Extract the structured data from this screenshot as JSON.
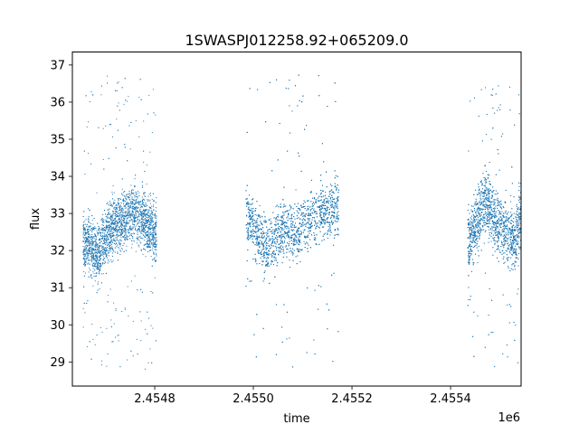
{
  "chart_data": {
    "type": "scatter",
    "title": "1SWASPJ012258.92+065209.0",
    "xlabel": "time",
    "ylabel": "flux",
    "x_offset_label": "1e6",
    "xlim": [
      2454633,
      2455543
    ],
    "ylim": [
      28.35,
      37.35
    ],
    "x_ticks": [
      {
        "value": 2454800,
        "label": "2.4548"
      },
      {
        "value": 2455000,
        "label": "2.4550"
      },
      {
        "value": 2455200,
        "label": "2.4552"
      },
      {
        "value": 2455400,
        "label": "2.4554"
      }
    ],
    "y_ticks": [
      {
        "value": 29,
        "label": "29"
      },
      {
        "value": 30,
        "label": "30"
      },
      {
        "value": 31,
        "label": "31"
      },
      {
        "value": 32,
        "label": "32"
      },
      {
        "value": 33,
        "label": "33"
      },
      {
        "value": 34,
        "label": "34"
      },
      {
        "value": 35,
        "label": "35"
      },
      {
        "value": 36,
        "label": "36"
      },
      {
        "value": 37,
        "label": "37"
      }
    ],
    "grid": false,
    "legend": "none",
    "marker_color": "#1f77b4",
    "series": [
      {
        "segments": [
          {
            "x_start": 2454655,
            "x_end": 2454805,
            "y_center": 32.6,
            "y_spread": 1.0,
            "outlier_low": 28.8,
            "outlier_high": 36.7,
            "n": 3200,
            "profile": [
              [
                2454665,
                32.2
              ],
              [
                2454685,
                31.9
              ],
              [
                2454700,
                32.4
              ],
              [
                2454720,
                32.7
              ],
              [
                2454760,
                33.0
              ],
              [
                2454790,
                32.7
              ],
              [
                2454800,
                32.5
              ]
            ]
          },
          {
            "x_start": 2454985,
            "x_end": 2455175,
            "y_center": 32.7,
            "y_spread": 1.0,
            "outlier_low": 28.8,
            "outlier_high": 36.8,
            "n": 3800,
            "profile": [
              [
                2454990,
                32.9
              ],
              [
                2455010,
                32.4
              ],
              [
                2455030,
                32.1
              ],
              [
                2455060,
                32.6
              ],
              [
                2455090,
                32.5
              ],
              [
                2455130,
                33.0
              ],
              [
                2455170,
                33.2
              ]
            ]
          },
          {
            "x_start": 2455435,
            "x_end": 2455545,
            "y_center": 32.7,
            "y_spread": 1.1,
            "outlier_low": 28.8,
            "outlier_high": 36.5,
            "n": 2600,
            "profile": [
              [
                2455440,
                32.3
              ],
              [
                2455470,
                33.4
              ],
              [
                2455500,
                32.6
              ],
              [
                2455530,
                32.3
              ],
              [
                2455543,
                33.0
              ]
            ]
          }
        ]
      }
    ]
  }
}
